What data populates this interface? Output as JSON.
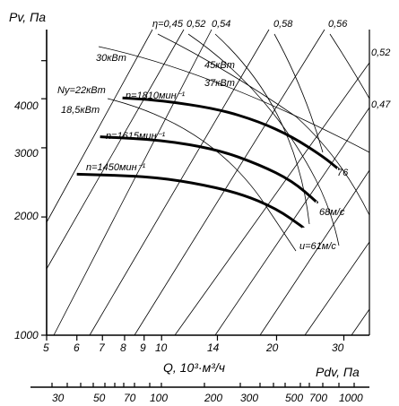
{
  "chart_data": {
    "type": "line",
    "title": "",
    "xlabel": "Q, 10³·м³/ч",
    "ylabel": "Pv, Па",
    "x2label": "Pdv, Па",
    "x_scale": "log",
    "y_scale": "log",
    "xlim": [
      5,
      35
    ],
    "ylim": [
      1000,
      6000
    ],
    "x_ticks": [
      "5",
      "6",
      "7",
      "8",
      "9",
      "10",
      "14",
      "20",
      "30"
    ],
    "y_ticks": [
      "1000",
      "2000",
      "3000",
      "4000"
    ],
    "x2_ticks": [
      "30",
      "50",
      "70",
      "100",
      "200",
      "300",
      "500",
      "700",
      "1000"
    ],
    "series": [
      {
        "name": "n=1810мин⁻¹",
        "x": [
          7.9,
          10,
          14,
          18,
          22,
          26.5,
          29
        ],
        "y": [
          4020,
          3960,
          3770,
          3500,
          3200,
          2850,
          2650
        ]
      },
      {
        "name": "n=1615мин⁻¹",
        "x": [
          6.9,
          10,
          14,
          18,
          22,
          25.5
        ],
        "y": [
          3200,
          3140,
          2970,
          2720,
          2470,
          2180
        ]
      },
      {
        "name": "n=1450мин⁻¹",
        "x": [
          6.0,
          9,
          12,
          16,
          20,
          23.5
        ],
        "y": [
          2570,
          2540,
          2450,
          2300,
          2100,
          1880
        ]
      }
    ],
    "efficiency_labels": [
      "η=0,45",
      "0,52",
      "0,54",
      "0,58",
      "0,56",
      "0,52",
      "0,47"
    ],
    "power_labels": [
      "Ny=22кВт",
      "18,5кВт",
      "30кВт",
      "45кВт",
      "37кВт"
    ],
    "velocity_labels": [
      "76",
      "68м/с",
      "u=61м/с"
    ],
    "grid": false,
    "legend": "none"
  }
}
